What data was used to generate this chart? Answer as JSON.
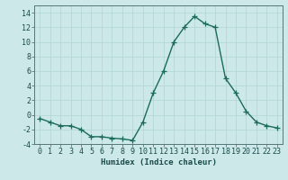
{
  "x": [
    0,
    1,
    2,
    3,
    4,
    5,
    6,
    7,
    8,
    9,
    10,
    11,
    12,
    13,
    14,
    15,
    16,
    17,
    18,
    19,
    20,
    21,
    22,
    23
  ],
  "y": [
    -0.5,
    -1.0,
    -1.5,
    -1.5,
    -2.0,
    -3.0,
    -3.0,
    -3.2,
    -3.3,
    -3.5,
    -1.0,
    3.0,
    6.0,
    10.0,
    12.0,
    13.5,
    12.5,
    12.0,
    5.0,
    3.0,
    0.5,
    -1.0,
    -1.5,
    -1.8
  ],
  "line_color": "#1a6b5a",
  "marker_color": "#1a6b5a",
  "bg_color": "#cce8e8",
  "grid_color": "#b0d4d4",
  "xlabel": "Humidex (Indice chaleur)",
  "ylim": [
    -4,
    15
  ],
  "xlim": [
    -0.5,
    23.5
  ],
  "yticks": [
    -4,
    -2,
    0,
    2,
    4,
    6,
    8,
    10,
    12,
    14
  ],
  "xticks": [
    0,
    1,
    2,
    3,
    4,
    5,
    6,
    7,
    8,
    9,
    10,
    11,
    12,
    13,
    14,
    15,
    16,
    17,
    18,
    19,
    20,
    21,
    22,
    23
  ],
  "xlabel_fontsize": 6.5,
  "tick_fontsize": 6.0,
  "line_width": 1.0,
  "marker_size": 4
}
